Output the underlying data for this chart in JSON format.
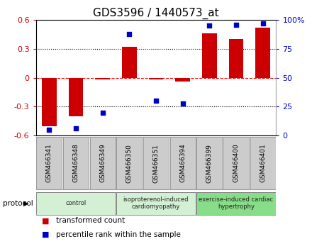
{
  "title": "GDS3596 / 1440573_at",
  "samples": [
    "GSM466341",
    "GSM466348",
    "GSM466349",
    "GSM466350",
    "GSM466351",
    "GSM466394",
    "GSM466399",
    "GSM466400",
    "GSM466401"
  ],
  "bar_values": [
    -0.5,
    -0.4,
    -0.02,
    0.32,
    -0.02,
    -0.04,
    0.46,
    0.4,
    0.52
  ],
  "scatter_values": [
    5,
    6,
    20,
    88,
    30,
    28,
    95,
    96,
    97
  ],
  "bar_color": "#cc0000",
  "scatter_color": "#0000cc",
  "ylim_left": [
    -0.6,
    0.6
  ],
  "ylim_right": [
    0,
    100
  ],
  "yticks_left": [
    -0.6,
    -0.3,
    0.0,
    0.3,
    0.6
  ],
  "ytick_labels_left": [
    "-0.6",
    "-0.3",
    "0",
    "0.3",
    "0.6"
  ],
  "yticks_right": [
    0,
    25,
    50,
    75,
    100
  ],
  "ytick_labels_right": [
    "0",
    "25",
    "50",
    "75",
    "100%"
  ],
  "protocol_groups": [
    {
      "label": "control",
      "start": 0,
      "end": 3,
      "color": "#d4f0d4"
    },
    {
      "label": "isoproterenol-induced\ncardiomyopathy",
      "start": 3,
      "end": 6,
      "color": "#d4f0d4"
    },
    {
      "label": "exercise-induced cardiac\nhypertrophy",
      "start": 6,
      "end": 9,
      "color": "#88dd88"
    }
  ],
  "legend_items": [
    {
      "label": "transformed count",
      "color": "#cc0000"
    },
    {
      "label": "percentile rank within the sample",
      "color": "#0000cc"
    }
  ],
  "protocol_label": "protocol",
  "title_fontsize": 11,
  "tick_fontsize": 8,
  "bar_width": 0.55,
  "background_color": "#ffffff",
  "sample_box_color": "#cccccc",
  "sample_box_edge": "#999999"
}
